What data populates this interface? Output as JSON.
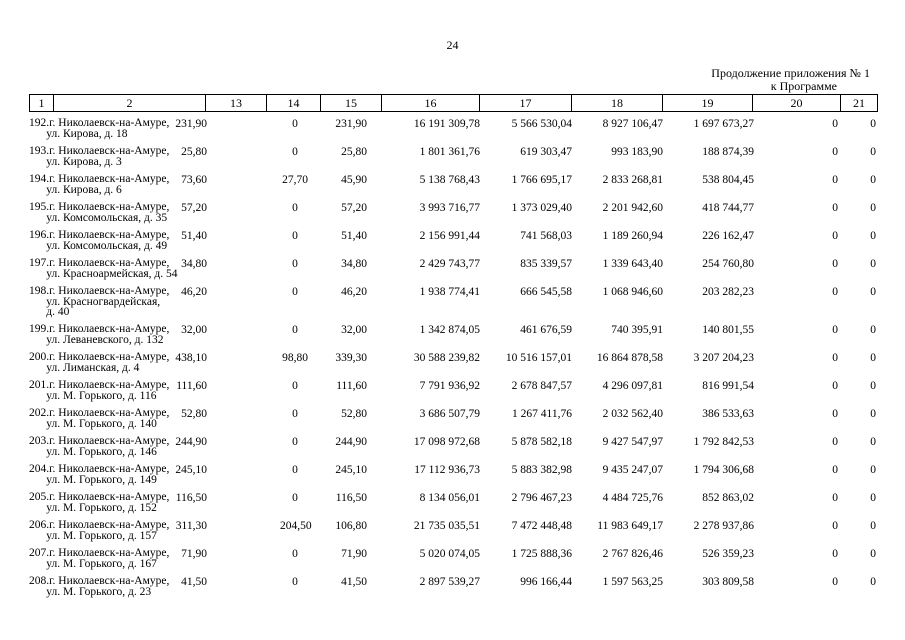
{
  "page_number": "24",
  "continuation": {
    "line1": "Продолжение приложения № 1",
    "line2": "к Программе"
  },
  "header_columns": [
    "1",
    "2",
    "13",
    "14",
    "15",
    "16",
    "17",
    "18",
    "19",
    "20",
    "21"
  ],
  "rows": [
    {
      "addr": "192.г. Николаевск-на-Амуре,\n      ул. Кирова, д. 18",
      "c13": "231,90",
      "c14": "0",
      "c15": "231,90",
      "c16": "16 191 309,78",
      "c17": "5 566 530,04",
      "c18": "8 927 106,47",
      "c19": "1 697 673,27",
      "c20": "0",
      "c21": "0"
    },
    {
      "addr": "193.г. Николаевск-на-Амуре,\n      ул. Кирова, д. 3",
      "c13": "25,80",
      "c14": "0",
      "c15": "25,80",
      "c16": "1 801 361,76",
      "c17": "619 303,47",
      "c18": "993 183,90",
      "c19": "188 874,39",
      "c20": "0",
      "c21": "0"
    },
    {
      "addr": "194.г. Николаевск-на-Амуре,\n      ул. Кирова, д. 6",
      "c13": "73,60",
      "c14": "27,70",
      "c15": "45,90",
      "c16": "5 138 768,43",
      "c17": "1 766 695,17",
      "c18": "2 833 268,81",
      "c19": "538 804,45",
      "c20": "0",
      "c21": "0"
    },
    {
      "addr": "195.г. Николаевск-на-Амуре,\n      ул. Комсомольская, д. 35",
      "c13": "57,20",
      "c14": "0",
      "c15": "57,20",
      "c16": "3 993 716,77",
      "c17": "1 373 029,40",
      "c18": "2 201 942,60",
      "c19": "418 744,77",
      "c20": "0",
      "c21": "0"
    },
    {
      "addr": "196.г. Николаевск-на-Амуре,\n      ул. Комсомольская, д. 49",
      "c13": "51,40",
      "c14": "0",
      "c15": "51,40",
      "c16": "2 156 991,44",
      "c17": "741 568,03",
      "c18": "1 189 260,94",
      "c19": "226 162,47",
      "c20": "0",
      "c21": "0"
    },
    {
      "addr": "197.г. Николаевск-на-Амуре,\n      ул. Красноармейская, д. 54",
      "c13": "34,80",
      "c14": "0",
      "c15": "34,80",
      "c16": "2 429 743,77",
      "c17": "835 339,57",
      "c18": "1 339 643,40",
      "c19": "254 760,80",
      "c20": "0",
      "c21": "0"
    },
    {
      "addr": "198.г. Николаевск-на-Амуре,\n      ул. Красногвардейская,\n      д. 40",
      "c13": "46,20",
      "c14": "0",
      "c15": "46,20",
      "c16": "1 938 774,41",
      "c17": "666 545,58",
      "c18": "1 068 946,60",
      "c19": "203 282,23",
      "c20": "0",
      "c21": "0"
    },
    {
      "addr": "199.г. Николаевск-на-Амуре,\n      ул. Леваневского, д. 132",
      "c13": "32,00",
      "c14": "0",
      "c15": "32,00",
      "c16": "1 342 874,05",
      "c17": "461 676,59",
      "c18": "740 395,91",
      "c19": "140 801,55",
      "c20": "0",
      "c21": "0"
    },
    {
      "addr": "200.г. Николаевск-на-Амуре,\n      ул. Лиманская, д. 4",
      "c13": "438,10",
      "c14": "98,80",
      "c15": "339,30",
      "c16": "30 588 239,82",
      "c17": "10 516 157,01",
      "c18": "16 864 878,58",
      "c19": "3 207 204,23",
      "c20": "0",
      "c21": "0"
    },
    {
      "addr": "201.г. Николаевск-на-Амуре,\n      ул. М. Горького, д. 116",
      "c13": "111,60",
      "c14": "0",
      "c15": "111,60",
      "c16": "7 791 936,92",
      "c17": "2 678 847,57",
      "c18": "4 296 097,81",
      "c19": "816 991,54",
      "c20": "0",
      "c21": "0"
    },
    {
      "addr": "202.г. Николаевск-на-Амуре,\n      ул. М. Горького, д. 140",
      "c13": "52,80",
      "c14": "0",
      "c15": "52,80",
      "c16": "3 686 507,79",
      "c17": "1 267 411,76",
      "c18": "2 032 562,40",
      "c19": "386 533,63",
      "c20": "0",
      "c21": "0"
    },
    {
      "addr": "203.г. Николаевск-на-Амуре,\n      ул. М. Горького, д. 146",
      "c13": "244,90",
      "c14": "0",
      "c15": "244,90",
      "c16": "17 098 972,68",
      "c17": "5 878 582,18",
      "c18": "9 427 547,97",
      "c19": "1 792 842,53",
      "c20": "0",
      "c21": "0"
    },
    {
      "addr": "204.г. Николаевск-на-Амуре,\n      ул. М. Горького, д. 149",
      "c13": "245,10",
      "c14": "0",
      "c15": "245,10",
      "c16": "17 112 936,73",
      "c17": "5 883 382,98",
      "c18": "9 435 247,07",
      "c19": "1 794 306,68",
      "c20": "0",
      "c21": "0"
    },
    {
      "addr": "205.г. Николаевск-на-Амуре,\n      ул. М. Горького, д. 152",
      "c13": "116,50",
      "c14": "0",
      "c15": "116,50",
      "c16": "8 134 056,01",
      "c17": "2 796 467,23",
      "c18": "4 484 725,76",
      "c19": "852 863,02",
      "c20": "0",
      "c21": "0"
    },
    {
      "addr": "206.г. Николаевск-на-Амуре,\n      ул. М. Горького, д. 157",
      "c13": "311,30",
      "c14": "204,50",
      "c15": "106,80",
      "c16": "21 735 035,51",
      "c17": "7 472 448,48",
      "c18": "11 983 649,17",
      "c19": "2 278 937,86",
      "c20": "0",
      "c21": "0"
    },
    {
      "addr": "207.г. Николаевск-на-Амуре,\n      ул. М. Горького, д. 167",
      "c13": "71,90",
      "c14": "0",
      "c15": "71,90",
      "c16": "5 020 074,05",
      "c17": "1 725 888,36",
      "c18": "2 767 826,46",
      "c19": "526 359,23",
      "c20": "0",
      "c21": "0"
    },
    {
      "addr": "208.г. Николаевск-на-Амуре,\n      ул. М. Горького, д. 23",
      "c13": "41,50",
      "c14": "0",
      "c15": "41,50",
      "c16": "2 897 539,27",
      "c17": "996 166,44",
      "c18": "1 597 563,25",
      "c19": "303 809,58",
      "c20": "0",
      "c21": "0"
    }
  ]
}
